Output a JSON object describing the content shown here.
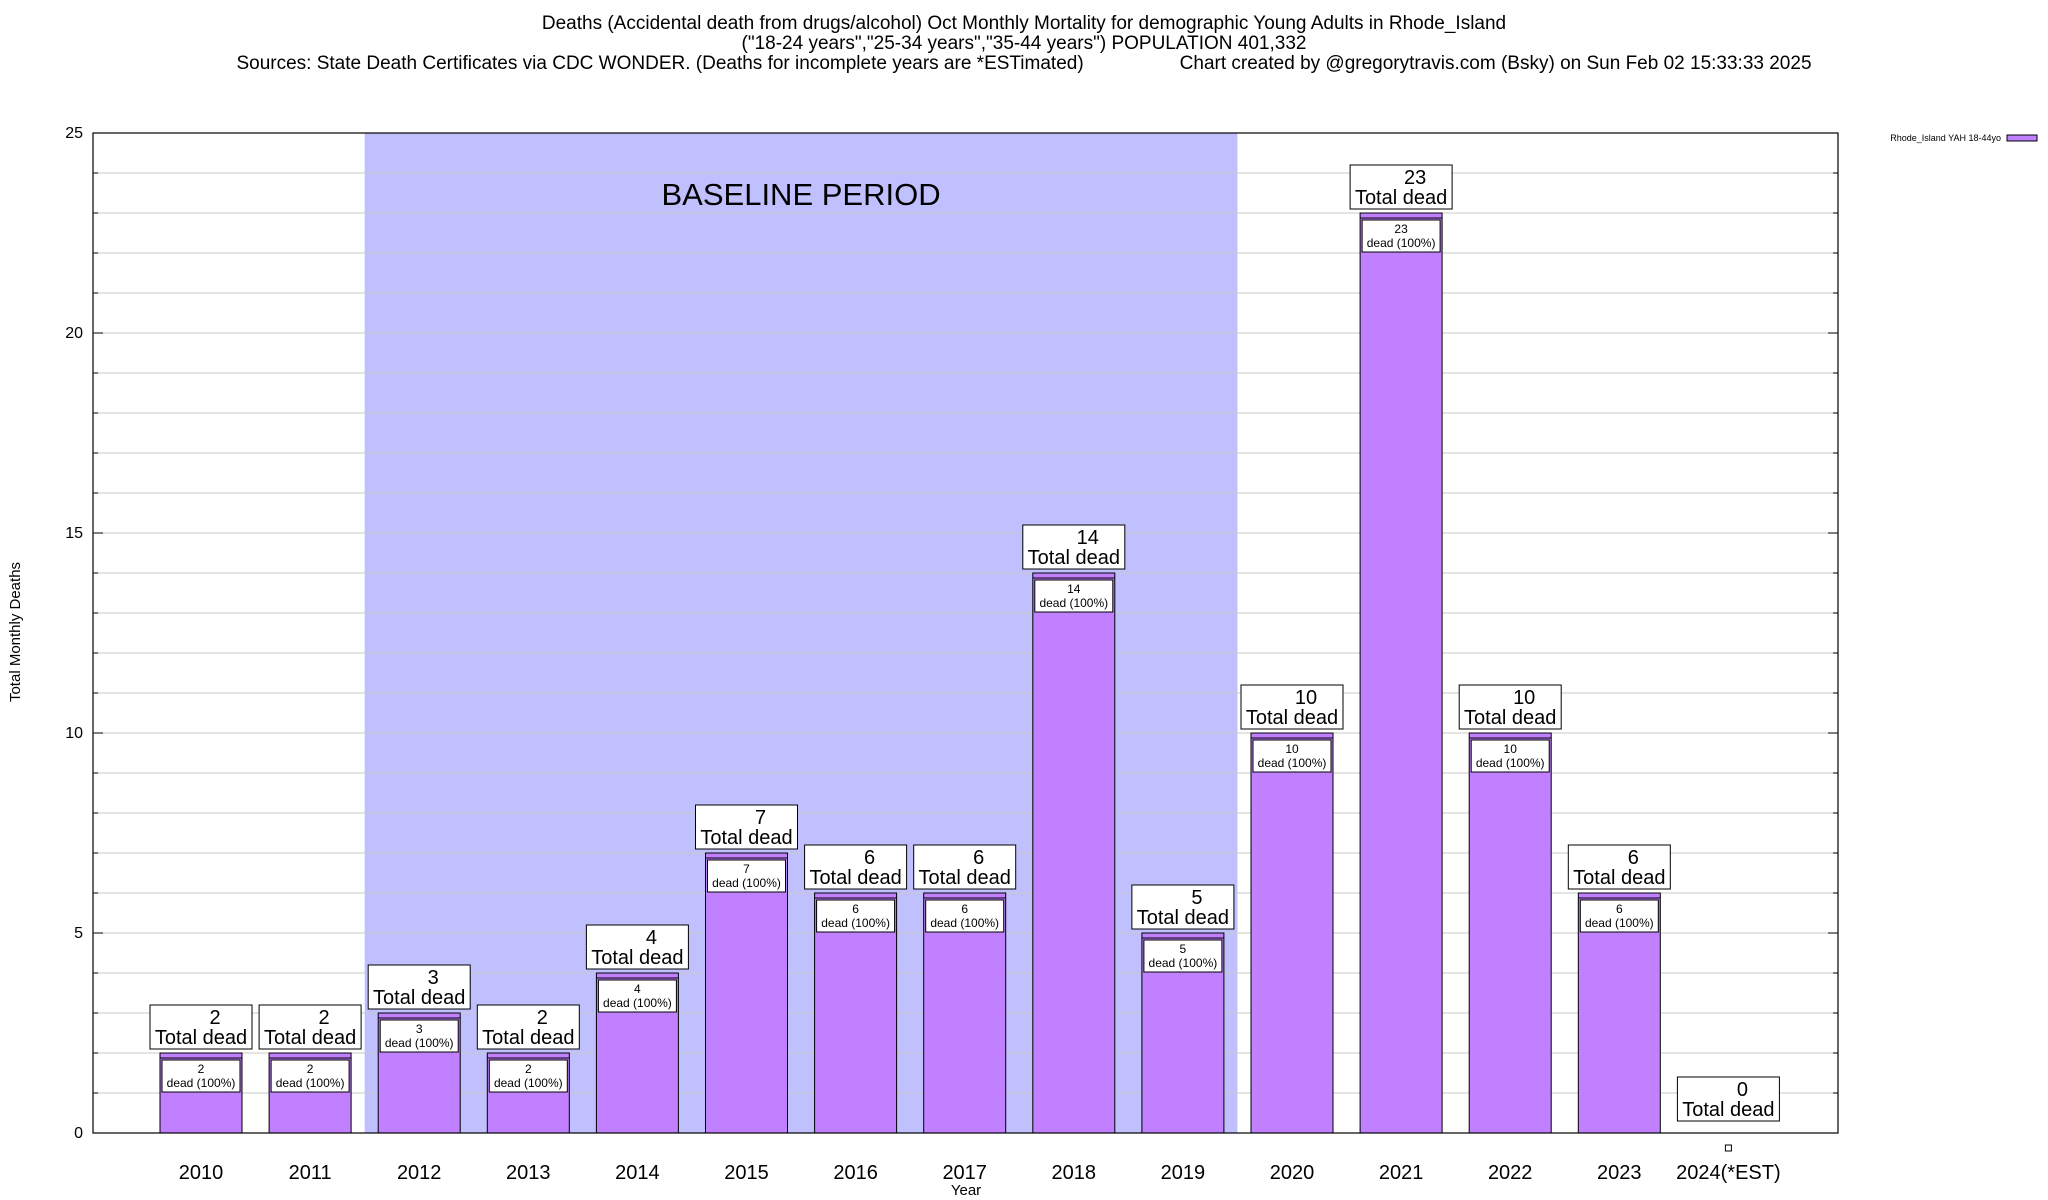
{
  "header": {
    "title_line_1": "Deaths (Accidental death from drugs/alcohol) Oct Monthly Mortality for demographic Young Adults in Rhode_Island",
    "title_line_2": "(\"18-24 years\",\"25-34 years\",\"35-44 years\") POPULATION 401,332",
    "sources": "Sources: State Death Certificates via CDC WONDER. (Deaths for incomplete years are *ESTimated)",
    "credit": "Chart created by @gregorytravis.com (Bsky) on Sun Feb 02 15:33:33 2025"
  },
  "chart_data": {
    "type": "bar",
    "xlabel": "Year",
    "ylabel": "Total Monthly Deaths",
    "ylim": [
      0,
      25
    ],
    "yticks": [
      0,
      5,
      10,
      15,
      20,
      25
    ],
    "grid": true,
    "legend_position": "top-right",
    "categories": [
      "2010",
      "2011",
      "2012",
      "2013",
      "2014",
      "2015",
      "2016",
      "2017",
      "2018",
      "2019",
      "2020",
      "2021",
      "2022",
      "2023",
      "2024(*EST)"
    ],
    "series": [
      {
        "name": "Rhode_Island YAH 18-44yo",
        "values": [
          2,
          2,
          3,
          2,
          4,
          7,
          6,
          6,
          14,
          5,
          10,
          23,
          10,
          6,
          0
        ]
      }
    ],
    "total_label": "Total dead",
    "inner_label": "dead (100%)",
    "baseline": {
      "label": "BASELINE PERIOD",
      "start": "2012",
      "end": "2019"
    },
    "colors": {
      "bar_fill": "#c080ff",
      "baseline_fill": "#c0c0ff",
      "grid": "#c8c8c8",
      "axis": "#000000"
    }
  }
}
